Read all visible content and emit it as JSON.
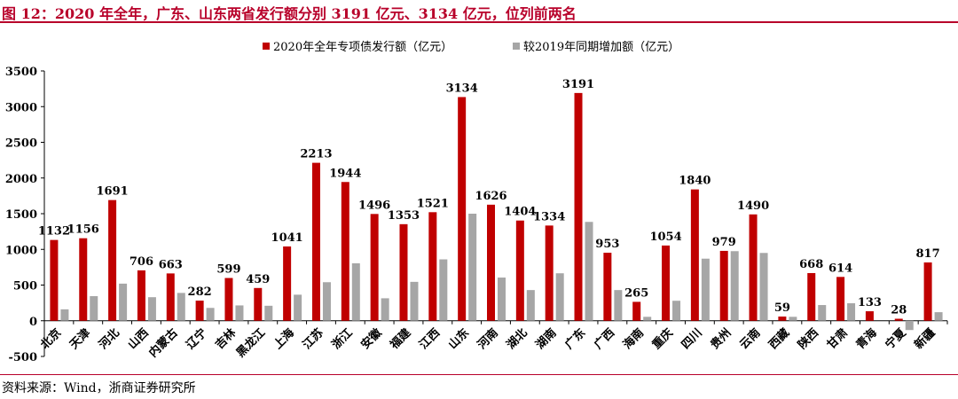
{
  "title": "图 12：2020 年全年，广东、山东两省发行额分别 3191 亿元、3134 亿元，位列前两名",
  "source": "资料来源：Wind，浙商证券研究所",
  "colors": {
    "series1": "#c00000",
    "series2": "#a6a6a6",
    "title": "#b8002a"
  },
  "chart_data": {
    "type": "bar",
    "categories": [
      "北京",
      "天津",
      "河北",
      "山西",
      "内蒙古",
      "辽宁",
      "吉林",
      "黑龙江",
      "上海",
      "江苏",
      "浙江",
      "安徽",
      "福建",
      "江西",
      "山东",
      "河南",
      "湖北",
      "湖南",
      "广东",
      "广西",
      "海南",
      "重庆",
      "四川",
      "贵州",
      "云南",
      "西藏",
      "陕西",
      "甘肃",
      "青海",
      "宁夏",
      "新疆"
    ],
    "series": [
      {
        "name": "2020年全年专项债发行额（亿元）",
        "values": [
          1132,
          1156,
          1691,
          706,
          663,
          282,
          599,
          459,
          1041,
          2213,
          1944,
          1496,
          1353,
          1521,
          3134,
          1626,
          1404,
          1334,
          3191,
          953,
          265,
          1054,
          1840,
          979,
          1490,
          59,
          668,
          614,
          133,
          28,
          817
        ]
      },
      {
        "name": "较2019年同期增加额（亿元）",
        "values": [
          160,
          345,
          520,
          330,
          390,
          180,
          215,
          210,
          365,
          540,
          805,
          315,
          545,
          860,
          1500,
          605,
          430,
          665,
          1385,
          430,
          55,
          280,
          870,
          975,
          950,
          55,
          220,
          245,
          0,
          -130,
          120
        ]
      }
    ],
    "ylim": [
      -500,
      3500
    ],
    "yticks": [
      -500,
      0,
      500,
      1000,
      1500,
      2000,
      2500,
      3000,
      3500
    ],
    "legend_position": "top-center",
    "data_labels": "series1",
    "grid": false
  }
}
